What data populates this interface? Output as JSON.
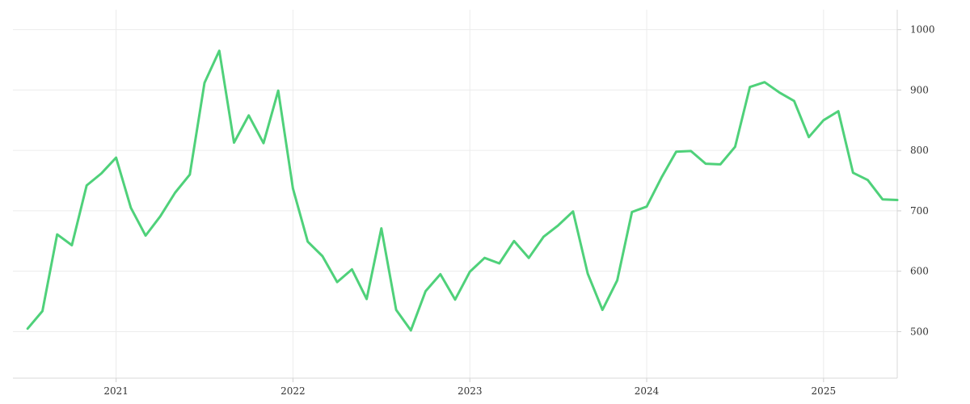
{
  "chart_data": {
    "type": "line",
    "title": "",
    "xlabel": "",
    "ylabel": "",
    "grid": true,
    "legend": "none",
    "x_ticks": [
      "2021",
      "2022",
      "2023",
      "2024",
      "2025"
    ],
    "y_ticks": [
      500,
      600,
      700,
      800,
      900,
      1000
    ],
    "xlim": [
      "2020-06",
      "2025-06"
    ],
    "ylim": [
      423,
      1033
    ],
    "y_axis_side": "right",
    "series": [
      {
        "color": "#4fd17a",
        "x": [
          "2020-07",
          "2020-08",
          "2020-09",
          "2020-10",
          "2020-11",
          "2020-12",
          "2021-01",
          "2021-02",
          "2021-03",
          "2021-04",
          "2021-05",
          "2021-06",
          "2021-07",
          "2021-08",
          "2021-09",
          "2021-10",
          "2021-11",
          "2021-12",
          "2022-01",
          "2022-02",
          "2022-03",
          "2022-04",
          "2022-05",
          "2022-06",
          "2022-07",
          "2022-08",
          "2022-09",
          "2022-10",
          "2022-11",
          "2022-12",
          "2023-01",
          "2023-02",
          "2023-03",
          "2023-04",
          "2023-05",
          "2023-06",
          "2023-07",
          "2023-08",
          "2023-09",
          "2023-10",
          "2023-11",
          "2023-12",
          "2024-01",
          "2024-02",
          "2024-03",
          "2024-04",
          "2024-05",
          "2024-06",
          "2024-07",
          "2024-08",
          "2024-09",
          "2024-10",
          "2024-11",
          "2024-12",
          "2025-01",
          "2025-02",
          "2025-03",
          "2025-04",
          "2025-05",
          "2025-06"
        ],
        "values": [
          505,
          534,
          661,
          643,
          742,
          762,
          788,
          705,
          659,
          691,
          730,
          760,
          912,
          965,
          813,
          858,
          812,
          899,
          737,
          649,
          625,
          582,
          603,
          554,
          671,
          536,
          502,
          567,
          595,
          553,
          599,
          622,
          613,
          650,
          622,
          657,
          676,
          699,
          596,
          536,
          585,
          698,
          707,
          755,
          798,
          799,
          778,
          777,
          806,
          905,
          913,
          896,
          882,
          822,
          850,
          865,
          763,
          751,
          719,
          718
        ]
      }
    ]
  }
}
